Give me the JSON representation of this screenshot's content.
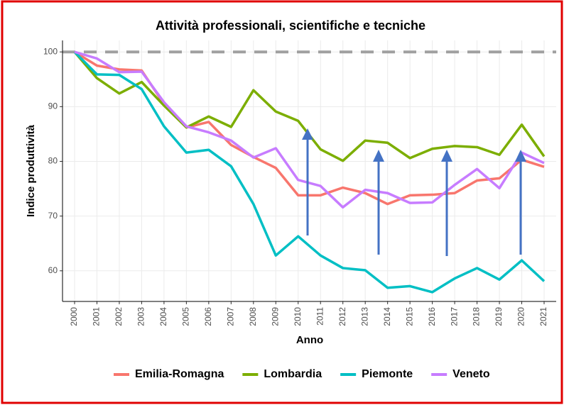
{
  "chart_data": {
    "type": "line",
    "title": "Attività professionali, scientifiche e tecniche",
    "x_label": "Anno",
    "y_label": "Indice produttività",
    "x": [
      2000,
      2001,
      2002,
      2003,
      2004,
      2005,
      2006,
      2007,
      2008,
      2009,
      2010,
      2011,
      2012,
      2013,
      2014,
      2015,
      2016,
      2017,
      2018,
      2019,
      2020,
      2021
    ],
    "series": [
      {
        "name": "Emilia-Romagna",
        "color": "#F8766D",
        "values": [
          100,
          97.5,
          96.8,
          96.6,
          90.5,
          86.2,
          87.2,
          83,
          80.8,
          78.8,
          73.8,
          73.8,
          75.2,
          74.2,
          72.2,
          73.8,
          73.9,
          74.2,
          76.5,
          76.9,
          80.3,
          79
        ]
      },
      {
        "name": "Lombardia",
        "color": "#7CAE00",
        "values": [
          100,
          95.2,
          92.4,
          94.5,
          90.2,
          86.2,
          88.2,
          86.3,
          93,
          89.1,
          87.4,
          82.2,
          80.1,
          83.8,
          83.4,
          80.6,
          82.3,
          82.8,
          82.6,
          81.2,
          86.7,
          80.9
        ]
      },
      {
        "name": "Piemonte",
        "color": "#00BFC4",
        "values": [
          100,
          95.9,
          95.8,
          93.2,
          86.4,
          81.6,
          82.1,
          79.1,
          72.2,
          62.8,
          66.3,
          62.8,
          60.5,
          60.1,
          56.9,
          57.2,
          56.1,
          58.6,
          60.5,
          58.4,
          61.9,
          58.1
        ]
      },
      {
        "name": "Veneto",
        "color": "#C77CFF",
        "values": [
          100,
          98.8,
          96.3,
          96.4,
          90.8,
          86.4,
          85.3,
          83.8,
          80.7,
          82.4,
          76.6,
          75.5,
          71.6,
          74.8,
          74.2,
          72.4,
          72.5,
          75.7,
          78.6,
          75.1,
          81.6,
          79.7
        ]
      }
    ],
    "xlim": [
      1999.46,
      2021.54
    ],
    "ylim": [
      54.4,
      102.1
    ],
    "xticks": [
      2000,
      2001,
      2002,
      2003,
      2004,
      2005,
      2006,
      2007,
      2008,
      2009,
      2010,
      2011,
      2012,
      2013,
      2014,
      2015,
      2016,
      2017,
      2018,
      2019,
      2020,
      2021
    ],
    "yticks": [
      60,
      70,
      80,
      90,
      100
    ],
    "reference_line": 100,
    "grid": true,
    "legend": "bottom"
  }
}
